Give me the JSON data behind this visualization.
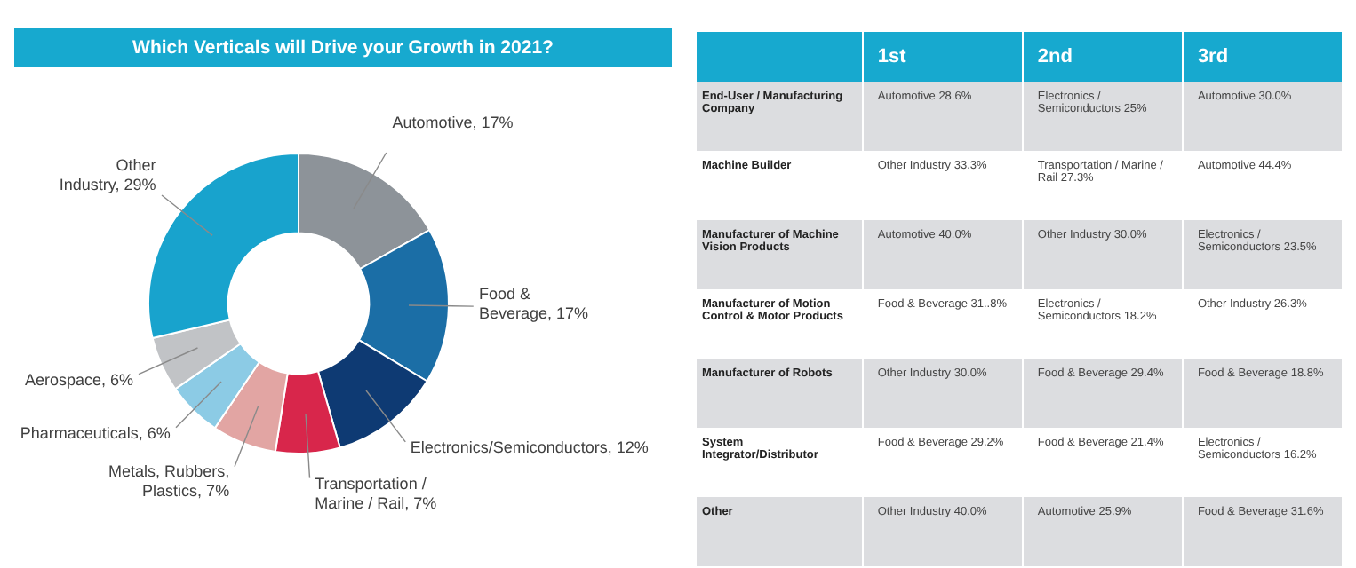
{
  "chart_data": [
    {
      "type": "donut",
      "title": "Which Verticals will Drive your Growth in 2021?",
      "categories": [
        "Automotive",
        "Food & Beverage",
        "Electronics/Semiconductors",
        "Transportation / Marine / Rail",
        "Metals, Rubbers, Plastics",
        "Pharmaceuticals",
        "Aerospace",
        "Other Industry"
      ],
      "values": [
        17,
        17,
        12,
        7,
        7,
        6,
        6,
        29
      ],
      "value_labels": [
        "17%",
        "17%",
        "12%",
        "7%",
        "7%",
        "6%",
        "6%",
        "29%"
      ],
      "colors": [
        "#8d9399",
        "#1b6ea6",
        "#0e3a73",
        "#d8264b",
        "#e2a5a3",
        "#8ccbe5",
        "#c1c3c6",
        "#18a3cd"
      ],
      "legend": false
    },
    {
      "type": "other",
      "categories": [
        "1st",
        "2nd",
        "3rd"
      ],
      "y_categories": [
        "End-User / Manufacturing Company",
        "Machine Builder",
        "Manufacturer of Machine Vision Products",
        "Manufacturer of Motion Control & Motor Products",
        "Manufacturer of Robots",
        "System Integrator/Distributor",
        "Other"
      ],
      "cell_labels": [
        [
          "Automotive 28.6%",
          "Electronics / Semiconductors 25%",
          "Automotive 30.0%"
        ],
        [
          "Other Industry 33.3%",
          "Transportation / Marine / Rail 27.3%",
          "Automotive 44.4%"
        ],
        [
          "Automotive 40.0%",
          "Other Industry 30.0%",
          "Electronics / Semiconductors 23.5%"
        ],
        [
          "Food & Beverage 31..8%",
          "Electronics / Semiconductors 18.2%",
          "Other Industry 26.3%"
        ],
        [
          "Other Industry 30.0%",
          "Food & Beverage 29.4%",
          "Food & Beverage 18.8%"
        ],
        [
          "Food & Beverage 29.2%",
          "Food & Beverage 21.4%",
          "Electronics / Semiconductors 16.2%"
        ],
        [
          "Other Industry 40.0%",
          "Automotive 25.9%",
          "Food & Beverage 31.6%"
        ]
      ]
    }
  ]
}
